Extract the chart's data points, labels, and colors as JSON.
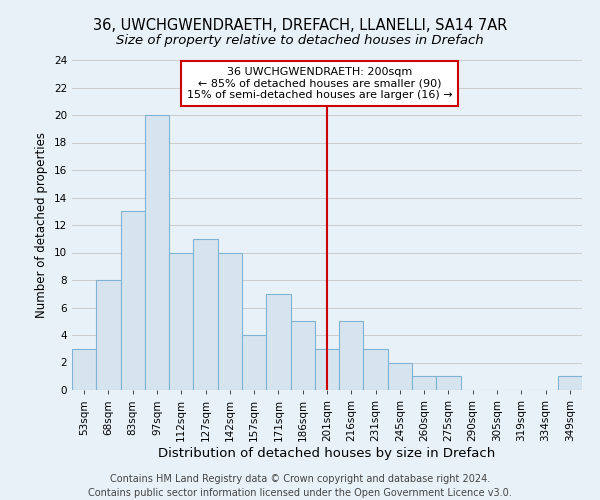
{
  "title": "36, UWCHGWENDRAETH, DREFACH, LLANELLI, SA14 7AR",
  "subtitle": "Size of property relative to detached houses in Drefach",
  "xlabel": "Distribution of detached houses by size in Drefach",
  "ylabel": "Number of detached properties",
  "footer_line1": "Contains HM Land Registry data © Crown copyright and database right 2024.",
  "footer_line2": "Contains public sector information licensed under the Open Government Licence v3.0.",
  "bin_labels": [
    "53sqm",
    "68sqm",
    "83sqm",
    "97sqm",
    "112sqm",
    "127sqm",
    "142sqm",
    "157sqm",
    "171sqm",
    "186sqm",
    "201sqm",
    "216sqm",
    "231sqm",
    "245sqm",
    "260sqm",
    "275sqm",
    "290sqm",
    "305sqm",
    "319sqm",
    "334sqm",
    "349sqm"
  ],
  "bar_heights": [
    3,
    8,
    13,
    20,
    10,
    11,
    10,
    4,
    7,
    5,
    3,
    5,
    3,
    2,
    1,
    1,
    0,
    0,
    0,
    0,
    1
  ],
  "bar_color": "#d6e4f0",
  "bar_edgecolor": "#7fb3d3",
  "vline_x": 10,
  "vline_color": "#cc0000",
  "annotation_line1": "36 UWCHGWENDRAETH: 200sqm",
  "annotation_line2": "← 85% of detached houses are smaller (90)",
  "annotation_line3": "15% of semi-detached houses are larger (16) →",
  "annotation_box_edgecolor": "#cc0000",
  "annotation_box_facecolor": "#ffffff",
  "ylim": [
    0,
    24
  ],
  "yticks": [
    0,
    2,
    4,
    6,
    8,
    10,
    12,
    14,
    16,
    18,
    20,
    22,
    24
  ],
  "grid_color": "#cccccc",
  "bg_color": "#e8f1f8",
  "plot_bg_color": "#e8f1f8",
  "title_fontsize": 10.5,
  "subtitle_fontsize": 9.5,
  "xlabel_fontsize": 9.5,
  "ylabel_fontsize": 8.5,
  "tick_fontsize": 7.5,
  "annotation_fontsize": 8,
  "footer_fontsize": 7
}
